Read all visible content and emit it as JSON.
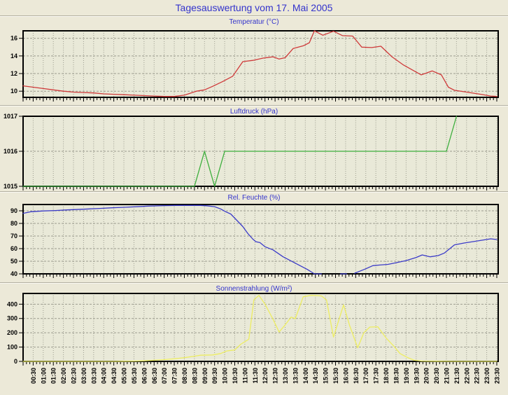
{
  "page": {
    "title": "Tagesauswertung vom 17. Mai 2005"
  },
  "colors": {
    "page_bg": "#ece9d8",
    "plot_bg": "#e9e9d8",
    "grid": "#9c9c8e",
    "axis": "#000000",
    "title_blue": "#3333cc",
    "temperature_line": "#cf3a3a",
    "pressure_line": "#3cae3c",
    "humidity_line": "#3b3bc8",
    "radiation_line": "#eded62"
  },
  "x_axis": {
    "unit": "time",
    "start_hour": 0,
    "end_hour": 23.57,
    "label_step_minutes": 30,
    "minor_tick_minutes": 10,
    "labels": [
      "00:30",
      "01:00",
      "01:30",
      "02:00",
      "02:30",
      "03:00",
      "03:30",
      "04:00",
      "04:30",
      "05:00",
      "05:30",
      "06:00",
      "06:30",
      "07:00",
      "07:30",
      "08:00",
      "08:30",
      "09:00",
      "09:30",
      "10:00",
      "10:30",
      "11:00",
      "11:30",
      "12:00",
      "12:30",
      "13:00",
      "13:30",
      "14:00",
      "14:30",
      "15:00",
      "15:30",
      "16:00",
      "16:30",
      "17:00",
      "17:30",
      "18:00",
      "18:30",
      "19:00",
      "19:30",
      "20:00",
      "20:30",
      "21:00",
      "21:30",
      "22:00",
      "22:30",
      "23:00",
      "23:30"
    ]
  },
  "chart_data": [
    {
      "type": "line",
      "title": "Temperatur (°C)",
      "color": "#cf3a3a",
      "ylim": [
        9.3,
        16.85
      ],
      "yticks": [
        10,
        12,
        14,
        16
      ],
      "grid_yticks": [
        10,
        12,
        14,
        16
      ],
      "points": [
        [
          0,
          10.6
        ],
        [
          0.5,
          10.45
        ],
        [
          1,
          10.3
        ],
        [
          1.5,
          10.15
        ],
        [
          2,
          10.0
        ],
        [
          2.5,
          9.9
        ],
        [
          3,
          9.85
        ],
        [
          3.5,
          9.8
        ],
        [
          4,
          9.7
        ],
        [
          4.5,
          9.65
        ],
        [
          5,
          9.6
        ],
        [
          5.5,
          9.55
        ],
        [
          6,
          9.5
        ],
        [
          6.5,
          9.45
        ],
        [
          7,
          9.4
        ],
        [
          7.5,
          9.4
        ],
        [
          8,
          9.55
        ],
        [
          8.6,
          10.0
        ],
        [
          9,
          10.15
        ],
        [
          9.4,
          10.55
        ],
        [
          9.9,
          11.1
        ],
        [
          10.4,
          11.7
        ],
        [
          10.9,
          13.35
        ],
        [
          11.4,
          13.5
        ],
        [
          11.9,
          13.75
        ],
        [
          12.4,
          13.9
        ],
        [
          12.7,
          13.65
        ],
        [
          13,
          13.8
        ],
        [
          13.4,
          14.85
        ],
        [
          13.9,
          15.15
        ],
        [
          14.2,
          15.5
        ],
        [
          14.45,
          16.85
        ],
        [
          14.87,
          16.35
        ],
        [
          15.4,
          16.8
        ],
        [
          15.85,
          16.3
        ],
        [
          16.35,
          16.25
        ],
        [
          16.8,
          15.0
        ],
        [
          17.3,
          14.95
        ],
        [
          17.75,
          15.1
        ],
        [
          18.3,
          13.9
        ],
        [
          18.85,
          13.0
        ],
        [
          19.4,
          12.3
        ],
        [
          19.75,
          11.85
        ],
        [
          20.3,
          12.3
        ],
        [
          20.75,
          11.85
        ],
        [
          21.1,
          10.45
        ],
        [
          21.4,
          10.1
        ],
        [
          22,
          9.9
        ],
        [
          22.7,
          9.65
        ],
        [
          23.2,
          9.45
        ],
        [
          23.5,
          9.4
        ]
      ]
    },
    {
      "type": "line",
      "title": "Luftdruck (hPa)",
      "color": "#3cae3c",
      "ylim": [
        1015,
        1017
      ],
      "yticks": [
        1015,
        1016,
        1017
      ],
      "grid_yticks": [
        1016
      ],
      "points": [
        [
          0,
          1015
        ],
        [
          8.5,
          1015
        ],
        [
          9,
          1016
        ],
        [
          9.5,
          1015
        ],
        [
          10,
          1016
        ],
        [
          21,
          1016
        ],
        [
          21.5,
          1017
        ]
      ]
    },
    {
      "type": "line",
      "title": "Rel. Feuchte (%)",
      "color": "#3b3bc8",
      "ylim": [
        40,
        95
      ],
      "yticks": [
        40,
        50,
        60,
        70,
        80,
        90
      ],
      "grid_yticks": [
        50,
        60,
        70,
        80,
        90
      ],
      "points": [
        [
          0,
          88
        ],
        [
          0.4,
          89.3
        ],
        [
          1,
          89.9
        ],
        [
          1.6,
          90.2
        ],
        [
          2.2,
          90.7
        ],
        [
          3,
          91.3
        ],
        [
          3.8,
          91.9
        ],
        [
          4.4,
          92.4
        ],
        [
          5,
          92.8
        ],
        [
          5.6,
          93.2
        ],
        [
          6.2,
          93.7
        ],
        [
          7,
          94.1
        ],
        [
          7.6,
          94.3
        ],
        [
          8.3,
          94.3
        ],
        [
          8.8,
          94.3
        ],
        [
          9.1,
          94.0
        ],
        [
          9.5,
          93.3
        ],
        [
          9.8,
          91.5
        ],
        [
          10.05,
          89.3
        ],
        [
          10.3,
          87.5
        ],
        [
          10.6,
          82.5
        ],
        [
          10.9,
          77.5
        ],
        [
          11.15,
          72
        ],
        [
          11.4,
          67.5
        ],
        [
          11.55,
          65.5
        ],
        [
          11.75,
          64.8
        ],
        [
          12,
          61.5
        ],
        [
          12.4,
          59
        ],
        [
          12.9,
          53.5
        ],
        [
          13.5,
          48.5
        ],
        [
          14.1,
          43.5
        ],
        [
          14.45,
          40
        ],
        [
          14.8,
          40
        ],
        [
          15.1,
          null
        ],
        [
          15.75,
          40
        ],
        [
          16.05,
          40
        ],
        [
          16.25,
          null
        ],
        [
          16.45,
          40.5
        ],
        [
          17,
          44
        ],
        [
          17.35,
          46.5
        ],
        [
          17.7,
          47
        ],
        [
          18.1,
          47.5
        ],
        [
          18.4,
          48.5
        ],
        [
          19,
          50.5
        ],
        [
          19.5,
          53
        ],
        [
          19.8,
          55
        ],
        [
          20.2,
          53.5
        ],
        [
          20.6,
          54.5
        ],
        [
          20.9,
          56.5
        ],
        [
          21.4,
          63
        ],
        [
          21.9,
          64.5
        ],
        [
          22.3,
          65.5
        ],
        [
          22.9,
          67
        ],
        [
          23.2,
          67.8
        ],
        [
          23.5,
          67.2
        ]
      ]
    },
    {
      "type": "line",
      "title": "Sonnenstrahlung (W/m²)",
      "color": "#eded62",
      "ylim": [
        0,
        475
      ],
      "yticks": [
        0,
        100,
        200,
        300,
        400
      ],
      "grid_yticks": [
        100,
        200,
        300,
        400
      ],
      "points": [
        [
          0,
          0
        ],
        [
          1,
          0
        ],
        [
          2,
          0
        ],
        [
          3,
          0
        ],
        [
          4,
          0
        ],
        [
          4.5,
          0
        ],
        [
          5,
          1
        ],
        [
          5.5,
          2
        ],
        [
          6,
          4
        ],
        [
          6.5,
          8
        ],
        [
          7,
          12
        ],
        [
          7.5,
          18
        ],
        [
          8,
          26
        ],
        [
          8.5,
          36
        ],
        [
          8.8,
          43
        ],
        [
          9.4,
          45
        ],
        [
          9.8,
          55
        ],
        [
          10.1,
          73
        ],
        [
          10.5,
          80
        ],
        [
          10.8,
          120
        ],
        [
          11.2,
          155
        ],
        [
          11.45,
          430
        ],
        [
          11.7,
          462
        ],
        [
          12,
          400
        ],
        [
          12.4,
          295
        ],
        [
          12.7,
          205
        ],
        [
          13,
          255
        ],
        [
          13.3,
          310
        ],
        [
          13.5,
          298
        ],
        [
          13.9,
          452
        ],
        [
          14.3,
          462
        ],
        [
          14.8,
          458
        ],
        [
          15.05,
          430
        ],
        [
          15.4,
          170
        ],
        [
          15.9,
          395
        ],
        [
          16.2,
          250
        ],
        [
          16.6,
          95
        ],
        [
          16.9,
          200
        ],
        [
          17.2,
          240
        ],
        [
          17.6,
          242
        ],
        [
          18,
          165
        ],
        [
          18.4,
          105
        ],
        [
          18.7,
          55
        ],
        [
          19.1,
          25
        ],
        [
          19.4,
          8
        ],
        [
          19.8,
          2
        ],
        [
          20.5,
          1
        ],
        [
          21.5,
          0
        ],
        [
          22.5,
          0
        ],
        [
          23.5,
          0
        ]
      ]
    }
  ]
}
